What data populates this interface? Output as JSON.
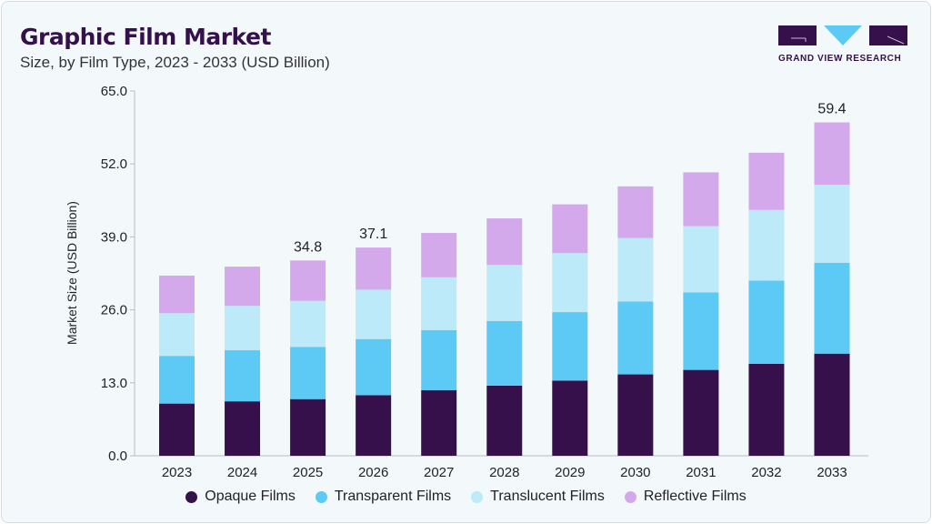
{
  "header": {
    "title": "Graphic Film Market",
    "subtitle": "Size, by Film Type, 2023 - 2033 (USD Billion)"
  },
  "logo": {
    "text": "GRAND VIEW RESEARCH"
  },
  "chart_data": {
    "type": "bar",
    "stacked": true,
    "title": "Graphic Film Market",
    "subtitle": "Size, by Film Type, 2023 - 2033 (USD Billion)",
    "xlabel": "",
    "ylabel": "Market Size (USD Billion)",
    "ylim": [
      0,
      65
    ],
    "yticks": [
      "0.0",
      "13.0",
      "26.0",
      "39.0",
      "52.0",
      "65.0"
    ],
    "grid": false,
    "legend_position": "bottom",
    "categories": [
      "2023",
      "2024",
      "2025",
      "2026",
      "2027",
      "2028",
      "2029",
      "2030",
      "2031",
      "2032",
      "2033"
    ],
    "series": [
      {
        "name": "Opaque Films",
        "color": "#35104a",
        "values": [
          9.3,
          9.7,
          10.1,
          10.8,
          11.7,
          12.5,
          13.4,
          14.5,
          15.3,
          16.4,
          18.2
        ]
      },
      {
        "name": "Transparent Films",
        "color": "#5ccaf5",
        "values": [
          8.5,
          9.1,
          9.3,
          10.0,
          10.7,
          11.5,
          12.2,
          13.0,
          13.8,
          14.8,
          16.2
        ]
      },
      {
        "name": "Translucent Films",
        "color": "#bceaf8",
        "values": [
          7.6,
          7.9,
          8.2,
          8.8,
          9.4,
          10.0,
          10.5,
          11.3,
          11.8,
          12.6,
          13.9
        ]
      },
      {
        "name": "Reflective Films",
        "color": "#d4a9ec",
        "values": [
          6.7,
          7.0,
          7.2,
          7.5,
          7.9,
          8.3,
          8.7,
          9.2,
          9.6,
          10.2,
          11.1
        ]
      }
    ],
    "data_labels": {
      "2025": "34.8",
      "2026": "37.1",
      "2033": "59.4"
    }
  }
}
